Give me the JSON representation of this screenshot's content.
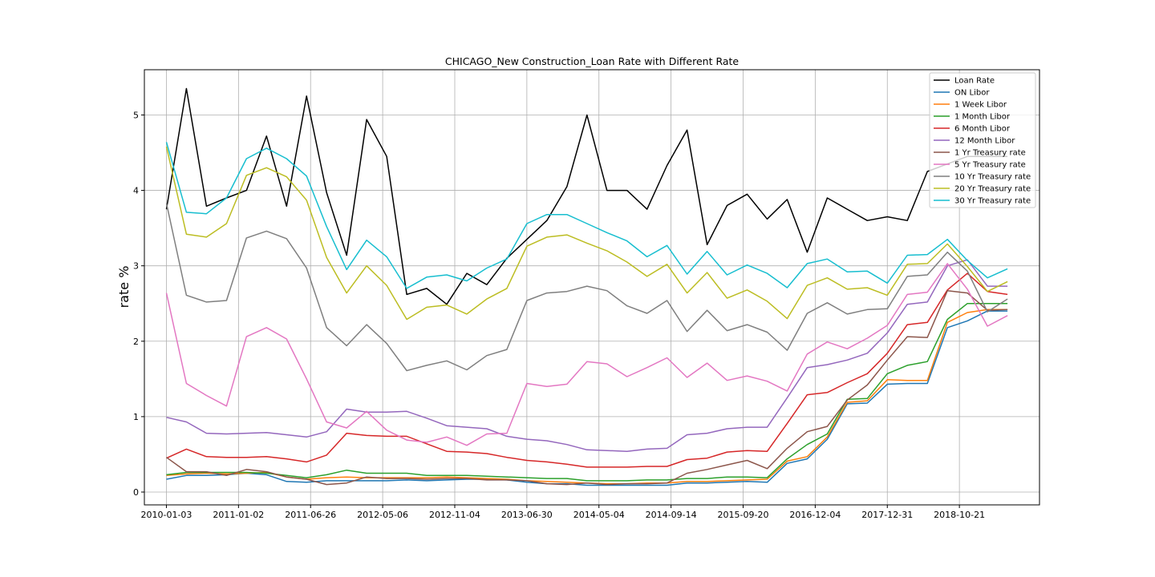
{
  "chart_data": {
    "type": "line",
    "title": "CHICAGO_New Construction_Loan Rate with Different Rate",
    "xlabel": "",
    "ylabel": "rate %",
    "ylim": [
      -0.17,
      5.6
    ],
    "xlim": [
      -1.1,
      43.6
    ],
    "grid": true,
    "legend_position": "upper-right",
    "x_tick_labels": [
      {
        "index": 0,
        "label": "2010-01-03"
      },
      {
        "index": 3.6,
        "label": "2011-01-02"
      },
      {
        "index": 7.2,
        "label": "2011-06-26"
      },
      {
        "index": 10.8,
        "label": "2012-05-06"
      },
      {
        "index": 14.4,
        "label": "2012-11-04"
      },
      {
        "index": 18.0,
        "label": "2013-06-30"
      },
      {
        "index": 21.6,
        "label": "2014-05-04"
      },
      {
        "index": 25.2,
        "label": "2014-09-14"
      },
      {
        "index": 28.8,
        "label": "2015-09-20"
      },
      {
        "index": 32.4,
        "label": "2016-12-04"
      },
      {
        "index": 36.0,
        "label": "2017-12-31"
      },
      {
        "index": 39.6,
        "label": "2018-10-21"
      }
    ],
    "y_ticks": [
      0,
      1,
      2,
      3,
      4,
      5
    ],
    "series": [
      {
        "name": "Loan Rate",
        "color": "#000000",
        "values": [
          3.75,
          5.35,
          3.79,
          3.9,
          4.0,
          4.72,
          3.79,
          5.25,
          3.97,
          3.14,
          4.94,
          4.45,
          2.62,
          2.7,
          2.49,
          2.9,
          2.75,
          3.1,
          3.35,
          3.6,
          4.05,
          5.0,
          4.0,
          4.0,
          3.75,
          4.33,
          4.8,
          3.28,
          3.8,
          3.95,
          3.62,
          3.88,
          3.18,
          3.9,
          3.75,
          3.6,
          3.65,
          3.6,
          4.25,
          4.35,
          4.45,
          4.45,
          4.45
        ]
      },
      {
        "name": "ON Libor",
        "color": "#1f77b4",
        "values": [
          0.17,
          0.22,
          0.22,
          0.23,
          0.25,
          0.23,
          0.14,
          0.13,
          0.15,
          0.15,
          0.15,
          0.15,
          0.16,
          0.15,
          0.16,
          0.17,
          0.17,
          0.16,
          0.13,
          0.11,
          0.11,
          0.09,
          0.09,
          0.09,
          0.09,
          0.09,
          0.12,
          0.12,
          0.13,
          0.14,
          0.13,
          0.38,
          0.44,
          0.7,
          1.17,
          1.18,
          1.43,
          1.44,
          1.44,
          2.18,
          2.27,
          2.4,
          2.4
        ]
      },
      {
        "name": "1 Week Libor",
        "color": "#ff7f0e",
        "values": [
          0.22,
          0.24,
          0.25,
          0.24,
          0.25,
          0.26,
          0.2,
          0.17,
          0.19,
          0.2,
          0.19,
          0.19,
          0.19,
          0.19,
          0.2,
          0.19,
          0.18,
          0.17,
          0.15,
          0.14,
          0.13,
          0.12,
          0.11,
          0.11,
          0.12,
          0.12,
          0.14,
          0.14,
          0.15,
          0.16,
          0.17,
          0.41,
          0.47,
          0.73,
          1.19,
          1.21,
          1.49,
          1.48,
          1.48,
          2.25,
          2.38,
          2.42,
          2.42
        ]
      },
      {
        "name": "1 Month Libor",
        "color": "#2ca02c",
        "values": [
          0.23,
          0.26,
          0.26,
          0.26,
          0.26,
          0.25,
          0.22,
          0.19,
          0.23,
          0.29,
          0.25,
          0.25,
          0.25,
          0.22,
          0.22,
          0.22,
          0.21,
          0.2,
          0.19,
          0.18,
          0.18,
          0.15,
          0.15,
          0.15,
          0.16,
          0.16,
          0.18,
          0.18,
          0.2,
          0.2,
          0.19,
          0.44,
          0.63,
          0.77,
          1.23,
          1.24,
          1.57,
          1.68,
          1.73,
          2.29,
          2.5,
          2.5,
          2.5
        ]
      },
      {
        "name": "6 Month Libor",
        "color": "#d62728",
        "values": [
          0.45,
          0.57,
          0.47,
          0.46,
          0.46,
          0.47,
          0.44,
          0.4,
          0.49,
          0.78,
          0.75,
          0.74,
          0.74,
          0.64,
          0.54,
          0.53,
          0.51,
          0.46,
          0.42,
          0.4,
          0.37,
          0.33,
          0.33,
          0.33,
          0.34,
          0.34,
          0.43,
          0.45,
          0.53,
          0.55,
          0.54,
          0.91,
          1.29,
          1.32,
          1.45,
          1.57,
          1.84,
          2.22,
          2.25,
          2.68,
          2.9,
          2.66,
          2.62
        ]
      },
      {
        "name": "12 Month Libor",
        "color": "#9467bd",
        "values": [
          0.99,
          0.93,
          0.78,
          0.77,
          0.78,
          0.79,
          0.76,
          0.73,
          0.8,
          1.1,
          1.06,
          1.06,
          1.07,
          0.98,
          0.88,
          0.86,
          0.84,
          0.74,
          0.7,
          0.68,
          0.63,
          0.56,
          0.55,
          0.54,
          0.57,
          0.58,
          0.76,
          0.78,
          0.84,
          0.86,
          0.86,
          1.25,
          1.65,
          1.69,
          1.75,
          1.84,
          2.11,
          2.49,
          2.52,
          3.0,
          3.08,
          2.73,
          2.73
        ]
      },
      {
        "name": "1 Yr Treasury rate",
        "color": "#8c564b",
        "values": [
          0.46,
          0.27,
          0.27,
          0.22,
          0.3,
          0.27,
          0.2,
          0.17,
          0.1,
          0.12,
          0.2,
          0.18,
          0.18,
          0.17,
          0.18,
          0.18,
          0.16,
          0.16,
          0.15,
          0.11,
          0.1,
          0.12,
          0.1,
          0.11,
          0.11,
          0.12,
          0.25,
          0.3,
          0.36,
          0.42,
          0.31,
          0.58,
          0.8,
          0.87,
          1.22,
          1.42,
          1.75,
          2.06,
          2.05,
          2.67,
          2.64,
          2.41,
          2.42
        ]
      },
      {
        "name": "5 Yr Treasury rate",
        "color": "#e377c2",
        "values": [
          2.64,
          1.44,
          1.28,
          1.14,
          2.06,
          2.18,
          2.03,
          1.5,
          0.93,
          0.85,
          1.07,
          0.82,
          0.69,
          0.66,
          0.73,
          0.62,
          0.77,
          0.78,
          1.44,
          1.4,
          1.43,
          1.73,
          1.7,
          1.53,
          1.65,
          1.78,
          1.52,
          1.71,
          1.48,
          1.54,
          1.47,
          1.34,
          1.83,
          1.99,
          1.9,
          2.04,
          2.21,
          2.62,
          2.65,
          3.03,
          2.69,
          2.2,
          2.34
        ]
      },
      {
        "name": "10 Yr Treasury rate",
        "color": "#7f7f7f",
        "values": [
          3.83,
          2.61,
          2.52,
          2.54,
          3.37,
          3.46,
          3.36,
          2.97,
          2.18,
          1.94,
          2.22,
          1.97,
          1.61,
          1.68,
          1.74,
          1.62,
          1.81,
          1.89,
          2.54,
          2.64,
          2.66,
          2.73,
          2.67,
          2.47,
          2.37,
          2.54,
          2.13,
          2.41,
          2.14,
          2.22,
          2.12,
          1.88,
          2.37,
          2.51,
          2.36,
          2.42,
          2.43,
          2.86,
          2.88,
          3.18,
          2.93,
          2.39,
          2.56
        ]
      },
      {
        "name": "20 Yr Treasury rate",
        "color": "#bcbd22",
        "values": [
          4.58,
          3.42,
          3.38,
          3.56,
          4.2,
          4.3,
          4.18,
          3.87,
          3.11,
          2.64,
          3.0,
          2.74,
          2.29,
          2.45,
          2.48,
          2.36,
          2.56,
          2.7,
          3.26,
          3.38,
          3.41,
          3.3,
          3.2,
          3.05,
          2.86,
          3.02,
          2.64,
          2.91,
          2.57,
          2.68,
          2.53,
          2.3,
          2.74,
          2.84,
          2.69,
          2.71,
          2.61,
          3.02,
          3.03,
          3.29,
          2.99,
          2.66,
          2.79
        ]
      },
      {
        "name": "30 Yr Treasury rate",
        "color": "#17becf",
        "values": [
          4.64,
          3.71,
          3.69,
          3.9,
          4.42,
          4.56,
          4.42,
          4.19,
          3.52,
          2.95,
          3.34,
          3.12,
          2.7,
          2.85,
          2.88,
          2.8,
          2.97,
          3.09,
          3.56,
          3.68,
          3.68,
          3.56,
          3.44,
          3.33,
          3.12,
          3.27,
          2.89,
          3.19,
          2.88,
          3.01,
          2.9,
          2.71,
          3.03,
          3.09,
          2.92,
          2.93,
          2.77,
          3.14,
          3.15,
          3.35,
          3.07,
          2.84,
          2.96
        ]
      }
    ]
  }
}
